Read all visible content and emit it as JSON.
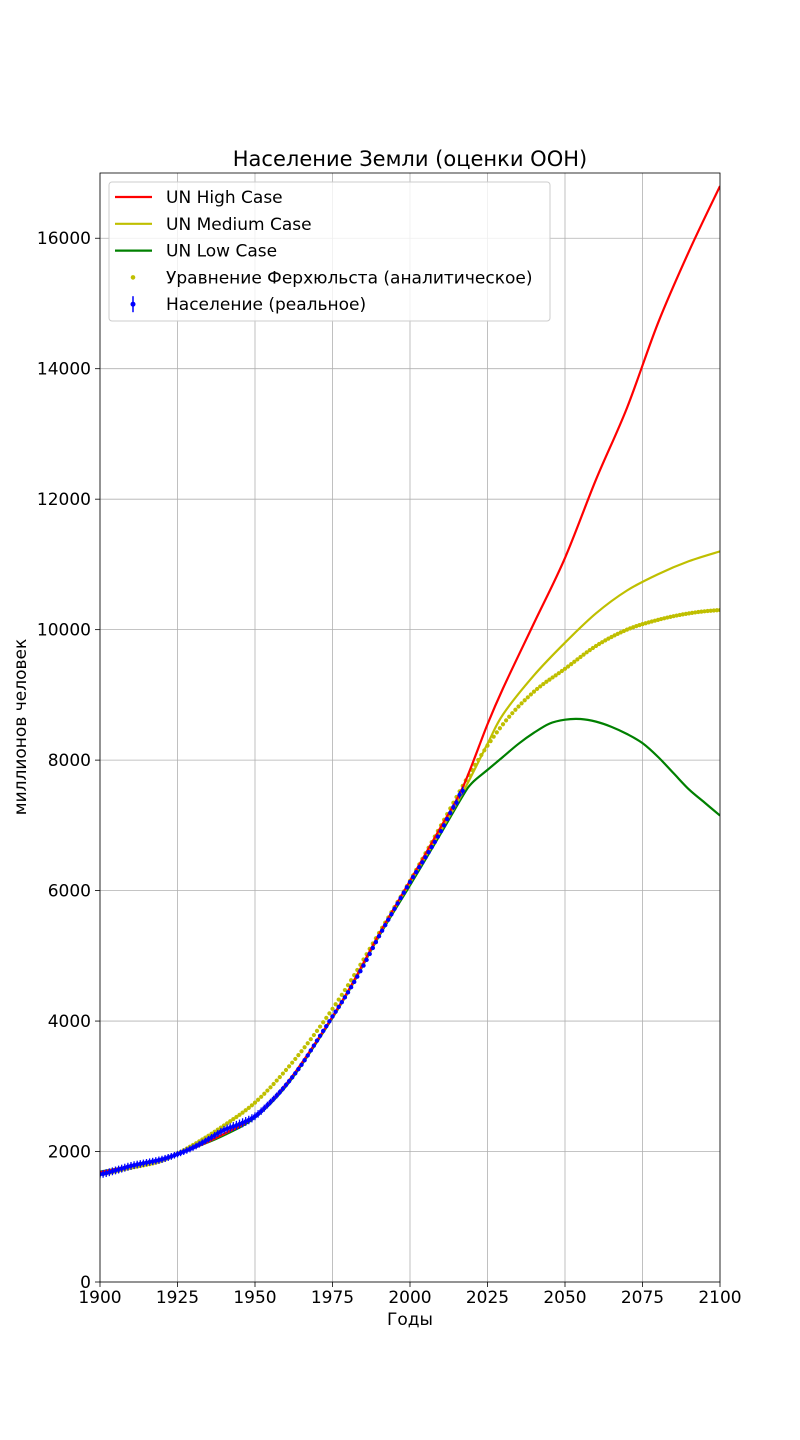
{
  "chart_data": {
    "type": "line",
    "title": "Население Земли (оценки ООН)",
    "xlabel": "Годы",
    "ylabel": "миллионов человек",
    "xlim": [
      1900,
      2100
    ],
    "ylim": [
      0,
      17000
    ],
    "x_ticks": [
      1900,
      1925,
      1950,
      1975,
      2000,
      2025,
      2050,
      2075,
      2100
    ],
    "y_ticks": [
      0,
      2000,
      4000,
      6000,
      8000,
      10000,
      12000,
      14000,
      16000
    ],
    "grid": true,
    "legend_position": "upper-left",
    "series": [
      {
        "name": "UN High Case",
        "kind": "line",
        "color": "#ff0000",
        "x": [
          1900,
          1910,
          1920,
          1930,
          1940,
          1950,
          1960,
          1970,
          1980,
          1990,
          2000,
          2010,
          2017,
          2025,
          2030,
          2040,
          2050,
          2060,
          2070,
          2080,
          2090,
          2100
        ],
        "y": [
          1680,
          1780,
          1880,
          2050,
          2270,
          2540,
          3030,
          3700,
          4460,
          5330,
          6150,
          6980,
          7580,
          8550,
          9100,
          10100,
          11100,
          12300,
          13400,
          14700,
          15800,
          16800
        ]
      },
      {
        "name": "UN Medium Case",
        "kind": "line",
        "color": "#bfbf00",
        "x": [
          1900,
          1910,
          1920,
          1930,
          1940,
          1950,
          1960,
          1970,
          1980,
          1990,
          2000,
          2010,
          2017,
          2025,
          2030,
          2040,
          2050,
          2060,
          2070,
          2080,
          2090,
          2100
        ],
        "y": [
          1680,
          1780,
          1880,
          2050,
          2270,
          2540,
          3030,
          3700,
          4450,
          5320,
          6120,
          6920,
          7500,
          8250,
          8700,
          9300,
          9800,
          10250,
          10600,
          10850,
          11050,
          11200
        ]
      },
      {
        "name": "UN Low Case",
        "kind": "line",
        "color": "#008000",
        "x": [
          1900,
          1910,
          1920,
          1930,
          1940,
          1950,
          1960,
          1970,
          1980,
          1990,
          2000,
          2010,
          2017,
          2020,
          2025,
          2030,
          2035,
          2040,
          2045,
          2050,
          2055,
          2060,
          2065,
          2070,
          2075,
          2080,
          2085,
          2090,
          2095,
          2100
        ],
        "y": [
          1690,
          1780,
          1880,
          2050,
          2250,
          2520,
          3000,
          3680,
          4440,
          5300,
          6080,
          6880,
          7450,
          7650,
          7850,
          8050,
          8250,
          8420,
          8560,
          8620,
          8630,
          8590,
          8510,
          8400,
          8260,
          8050,
          7800,
          7550,
          7350,
          7150
        ]
      },
      {
        "name": "Уравнение Ферхюльста (аналитическое)",
        "kind": "scatter",
        "color": "#bfbf00",
        "x": [
          1900,
          1910,
          1920,
          1930,
          1940,
          1950,
          1960,
          1970,
          1980,
          1990,
          2000,
          2010,
          2020,
          2030,
          2040,
          2050,
          2060,
          2070,
          2080,
          2090,
          2100
        ],
        "y": [
          1650,
          1750,
          1860,
          2100,
          2400,
          2750,
          3250,
          3850,
          4550,
          5350,
          6150,
          7000,
          7850,
          8550,
          9050,
          9400,
          9750,
          10000,
          10150,
          10250,
          10300
        ]
      },
      {
        "name": "Население (реальное)",
        "kind": "errorbar",
        "color": "#0000ff",
        "x": [
          1900,
          1905,
          1910,
          1915,
          1920,
          1925,
          1930,
          1935,
          1940,
          1945,
          1950,
          1955,
          1960,
          1965,
          1970,
          1975,
          1980,
          1985,
          1990,
          1995,
          2000,
          2005,
          2010,
          2015,
          2017
        ],
        "y": [
          1650,
          1710,
          1780,
          1830,
          1880,
          1960,
          2060,
          2190,
          2330,
          2420,
          2540,
          2760,
          3020,
          3330,
          3700,
          4070,
          4440,
          4850,
          5300,
          5720,
          6130,
          6510,
          6910,
          7350,
          7530
        ],
        "yerr": [
          60,
          60,
          60,
          55,
          55,
          50,
          50,
          50,
          60,
          70,
          60,
          50,
          40,
          30,
          30,
          25,
          25,
          20,
          20,
          20,
          20,
          20,
          20,
          50,
          60
        ]
      }
    ]
  }
}
